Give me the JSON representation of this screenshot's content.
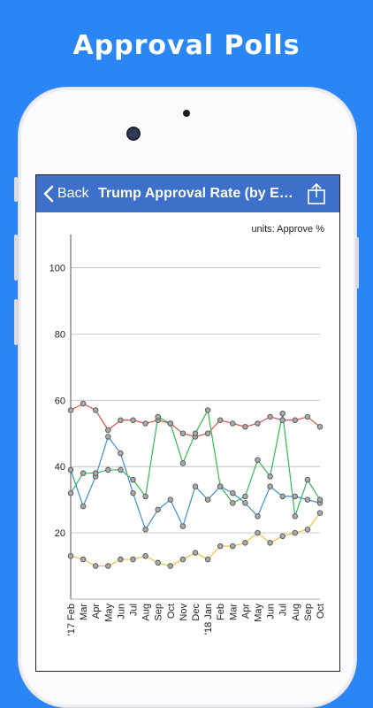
{
  "promo": {
    "headline": "Approval Polls"
  },
  "navbar": {
    "back_label": "Back",
    "title": "Trump Approval Rate (by Eth...",
    "icons": {
      "back": "chevron-left-icon",
      "share": "share-icon"
    }
  },
  "colors": {
    "background": "#2a86f5",
    "navbar": "#3e70c9",
    "grid": "#bbbbbb",
    "marker_fill": "#a9a9a9",
    "marker_stroke": "#555555"
  },
  "chart_data": {
    "type": "line",
    "units_label": "units: Approve %",
    "ylim": [
      0,
      110
    ],
    "yticks": [
      20,
      40,
      60,
      80,
      100
    ],
    "grid": true,
    "x": [
      "'17 Feb",
      "Mar",
      "Apr",
      "May",
      "Jun",
      "Jul",
      "Aug",
      "Sep",
      "Oct",
      "Nov",
      "Dec",
      "'18 Jan",
      "Feb",
      "Mar",
      "Apr",
      "May",
      "Jun",
      "Jul",
      "Aug",
      "Sep",
      "Oct"
    ],
    "series": [
      {
        "color": "#d9534f",
        "values": [
          57,
          59,
          57,
          51,
          54,
          54,
          53,
          54,
          53,
          50,
          49,
          50,
          54,
          53,
          52,
          53,
          55,
          54,
          54,
          55,
          52
        ]
      },
      {
        "color": "#3d8fd6",
        "values": [
          39,
          28,
          37,
          49,
          44,
          32,
          21,
          27,
          30,
          22,
          34,
          30,
          34,
          32,
          29,
          25,
          34,
          31,
          31,
          30,
          29
        ]
      },
      {
        "color": "#2ebc52",
        "values": [
          32,
          38,
          38,
          39,
          39,
          36,
          31,
          55,
          53,
          41,
          50,
          57,
          34,
          29,
          31,
          42,
          37,
          56,
          25,
          36,
          30
        ]
      },
      {
        "color": "#f0c23b",
        "values": [
          13,
          12,
          10,
          10,
          12,
          12,
          13,
          11,
          10,
          12,
          14,
          12,
          16,
          16,
          17,
          20,
          17,
          19,
          20,
          21,
          26
        ]
      }
    ]
  }
}
